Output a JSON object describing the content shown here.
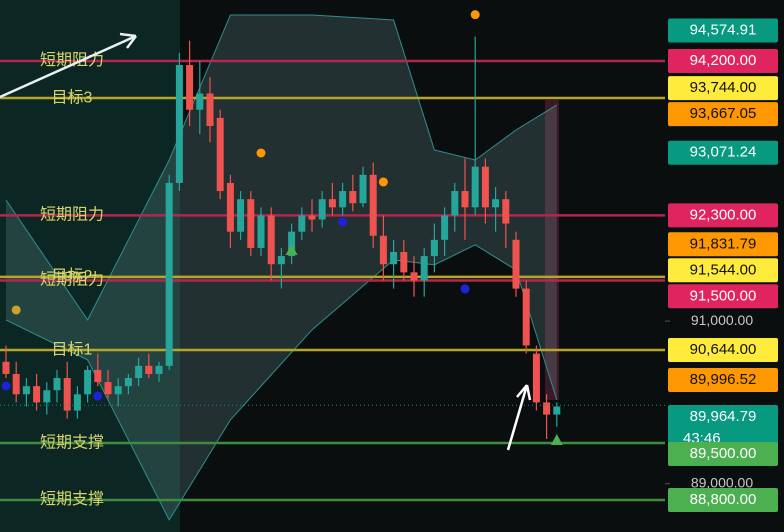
{
  "chart_data": {
    "type": "candlestick",
    "ylim": [
      88406,
      94950
    ],
    "yticks": [
      {
        "value": 91000,
        "label": "91,000.00"
      },
      {
        "value": 89000,
        "label": "89,000.00"
      }
    ],
    "up_color": "#26a69a",
    "down_color": "#ef5350",
    "open": [
      90500,
      90350,
      90100,
      90200,
      90000,
      90150,
      90300,
      89900,
      90100,
      90400,
      90250,
      90100,
      90200,
      90300,
      90450,
      90350,
      90450,
      92700,
      94150,
      93600,
      93800,
      93500,
      92700,
      92100,
      92500,
      91900,
      92300,
      91700,
      91800,
      92100,
      92300,
      92250,
      92500,
      92400,
      92600,
      92450,
      92800,
      92050,
      91700,
      91850,
      91600,
      91500,
      91800,
      92000,
      92300,
      92600,
      92400,
      92900,
      92400,
      92500,
      92000,
      91400,
      90600,
      90000,
      89850
    ],
    "high": [
      90700,
      90500,
      90300,
      90350,
      90250,
      90400,
      90500,
      90200,
      90450,
      90600,
      90400,
      90300,
      90350,
      90550,
      90600,
      90500,
      92800,
      94300,
      94450,
      94200,
      94000,
      93600,
      92800,
      92600,
      92600,
      92400,
      92400,
      91900,
      92200,
      92400,
      92500,
      92600,
      92700,
      92700,
      92800,
      92900,
      92950,
      92300,
      92000,
      92000,
      91800,
      91900,
      92200,
      92400,
      92700,
      93000,
      94500,
      93000,
      92650,
      92600,
      92100,
      91500,
      90700,
      90100,
      90000
    ],
    "low": [
      90300,
      90000,
      89950,
      89900,
      89850,
      90000,
      89800,
      89800,
      90000,
      90200,
      90050,
      89950,
      90100,
      90200,
      90300,
      90250,
      90400,
      92600,
      93400,
      93300,
      93200,
      92500,
      91900,
      92000,
      91800,
      91800,
      91500,
      91400,
      91700,
      92000,
      92100,
      92150,
      92300,
      92300,
      92350,
      92400,
      91900,
      91500,
      91400,
      91500,
      91300,
      91300,
      91600,
      91800,
      92100,
      92000,
      92300,
      92200,
      92100,
      91900,
      91300,
      90600,
      89900,
      89550,
      89700
    ],
    "close": [
      90350,
      90100,
      90200,
      90000,
      90150,
      90300,
      89900,
      90100,
      90400,
      90250,
      90100,
      90200,
      90300,
      90450,
      90350,
      90450,
      92700,
      94150,
      93600,
      93800,
      93400,
      92600,
      92100,
      92500,
      91900,
      92300,
      91700,
      91800,
      92100,
      92300,
      92250,
      92500,
      92400,
      92600,
      92450,
      92800,
      92050,
      91700,
      91850,
      91600,
      91500,
      91800,
      92000,
      92300,
      92600,
      92400,
      92900,
      92400,
      92500,
      92200,
      91400,
      90700,
      90000,
      89850,
      89950
    ],
    "bands": {
      "x": [
        0,
        8,
        16,
        22,
        30,
        38,
        42,
        46,
        50,
        54
      ],
      "upper": [
        92490,
        91015,
        92982,
        94766,
        94766,
        94704,
        93105,
        92982,
        93351,
        93659
      ],
      "lower": [
        91015,
        90523,
        88555,
        89785,
        90893,
        91754,
        91692,
        91938,
        91630,
        90031
      ],
      "color": "#2f8f8f"
    },
    "markers": [
      {
        "x": 46,
        "value": 94770,
        "shape": "circle",
        "color": "#ff9800"
      },
      {
        "x": 25,
        "value": 93068,
        "shape": "circle",
        "color": "#ff9800"
      },
      {
        "x": 37,
        "value": 92712,
        "shape": "circle",
        "color": "#ff9800"
      },
      {
        "x": 1,
        "value": 91137,
        "shape": "circle",
        "color": "#c9a227"
      },
      {
        "x": 33,
        "value": 92220,
        "shape": "circle",
        "color": "#1e22d8"
      },
      {
        "x": 45,
        "value": 91396,
        "shape": "circle",
        "color": "#1e22d8"
      },
      {
        "x": 0,
        "value": 90202,
        "shape": "circle",
        "color": "#1e22d8"
      },
      {
        "x": 9,
        "value": 90079,
        "shape": "circle",
        "color": "#1e22d8"
      },
      {
        "x": 28,
        "value": 91875,
        "shape": "triangle",
        "color": "#4caf50"
      },
      {
        "x": 54,
        "value": 89538,
        "shape": "triangle",
        "color": "#4caf50"
      }
    ],
    "levels": [
      {
        "label": "短期阻力",
        "value": 94200,
        "color": "#b3264f"
      },
      {
        "label": "目标3",
        "value": 93744,
        "color": "#b5a62a"
      },
      {
        "label": "短期阻力",
        "value": 92300,
        "color": "#b3264f"
      },
      {
        "label": "目标2",
        "value": 91544,
        "color": "#b5a62a"
      },
      {
        "label": "短期阻力",
        "value": 91500,
        "color": "#b3264f"
      },
      {
        "label": "目标1",
        "value": 90644,
        "color": "#b5a62a"
      },
      {
        "label": "短期支撑",
        "value": 89500,
        "color": "#3d8c40"
      },
      {
        "label": "短期支撑",
        "value": 88800,
        "color": "#3d8c40"
      }
    ],
    "price_tags": [
      {
        "value": 94574.91,
        "label": "94,574.91",
        "color": "#089981",
        "text_color": "#ffffff"
      },
      {
        "value": 94200,
        "label": "94,200.00",
        "color": "#e0245e",
        "text_color": "#ffffff"
      },
      {
        "value": 93744,
        "label": "93,744.00",
        "color": "#ffeb3b",
        "text_color": "#111111"
      },
      {
        "value": 93667.05,
        "label": "93,667.05",
        "color": "#ff9800",
        "text_color": "#111111"
      },
      {
        "value": 93071.24,
        "label": "93,071.24",
        "color": "#089981",
        "text_color": "#ffffff"
      },
      {
        "value": 92300,
        "label": "92,300.00",
        "color": "#e0245e",
        "text_color": "#ffffff"
      },
      {
        "value": 91831.79,
        "label": "91,831.79",
        "color": "#ff9800",
        "text_color": "#111111"
      },
      {
        "value": 91544,
        "label": "91,544.00",
        "color": "#ffeb3b",
        "text_color": "#111111"
      },
      {
        "value": 91500,
        "label": "91,500.00",
        "color": "#e0245e",
        "text_color": "#ffffff"
      },
      {
        "value": 90644,
        "label": "90,644.00",
        "color": "#ffeb3b",
        "text_color": "#111111"
      },
      {
        "value": 89996.52,
        "label": "89,996.52",
        "color": "#ff9800",
        "text_color": "#111111"
      },
      {
        "value": 89964.79,
        "label": "89,964.79",
        "color": "#089981",
        "text_color": "#ffffff",
        "sub": "43:46"
      },
      {
        "value": 89500,
        "label": "89,500.00",
        "color": "#4caf50",
        "text_color": "#ffffff"
      },
      {
        "value": 88800,
        "label": "88,800.00",
        "color": "#4caf50",
        "text_color": "#ffffff"
      }
    ]
  }
}
